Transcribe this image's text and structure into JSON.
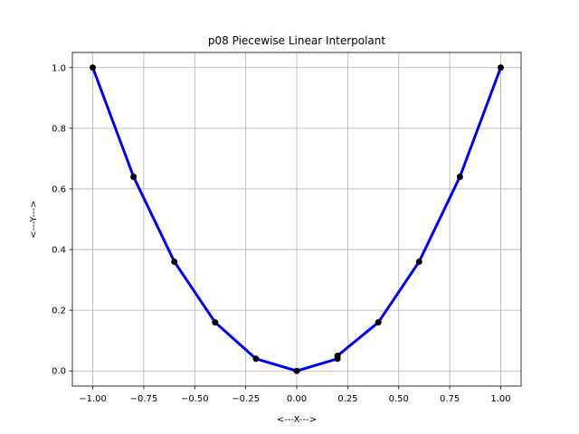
{
  "chart_data": {
    "type": "line",
    "title": "p08 Piecewise Linear Interpolant",
    "xlabel": "<---X--->",
    "ylabel": "<---Y--->",
    "xlim": [
      -1.1,
      1.1
    ],
    "ylim": [
      -0.05,
      1.05
    ],
    "grid": true,
    "xticks": [
      -1.0,
      -0.75,
      -0.5,
      -0.25,
      0.0,
      0.25,
      0.5,
      0.75,
      1.0
    ],
    "xtick_labels": [
      "−1.00",
      "−0.75",
      "−0.50",
      "−0.25",
      "0.00",
      "0.25",
      "0.50",
      "0.75",
      "1.00"
    ],
    "yticks": [
      0.0,
      0.2,
      0.4,
      0.6,
      0.8,
      1.0
    ],
    "ytick_labels": [
      "0.0",
      "0.2",
      "0.4",
      "0.6",
      "0.8",
      "1.0"
    ],
    "series": [
      {
        "color": "#0000ff",
        "marker_color": "#000000",
        "x": [
          -1.0,
          -0.8,
          -0.6,
          -0.4,
          -0.2,
          0.0,
          0.2,
          0.2,
          0.4,
          0.6,
          0.8,
          1.0
        ],
        "y": [
          1.0,
          0.64,
          0.36,
          0.16,
          0.04,
          0.0,
          0.04,
          0.05,
          0.16,
          0.36,
          0.64,
          1.0
        ]
      }
    ]
  }
}
